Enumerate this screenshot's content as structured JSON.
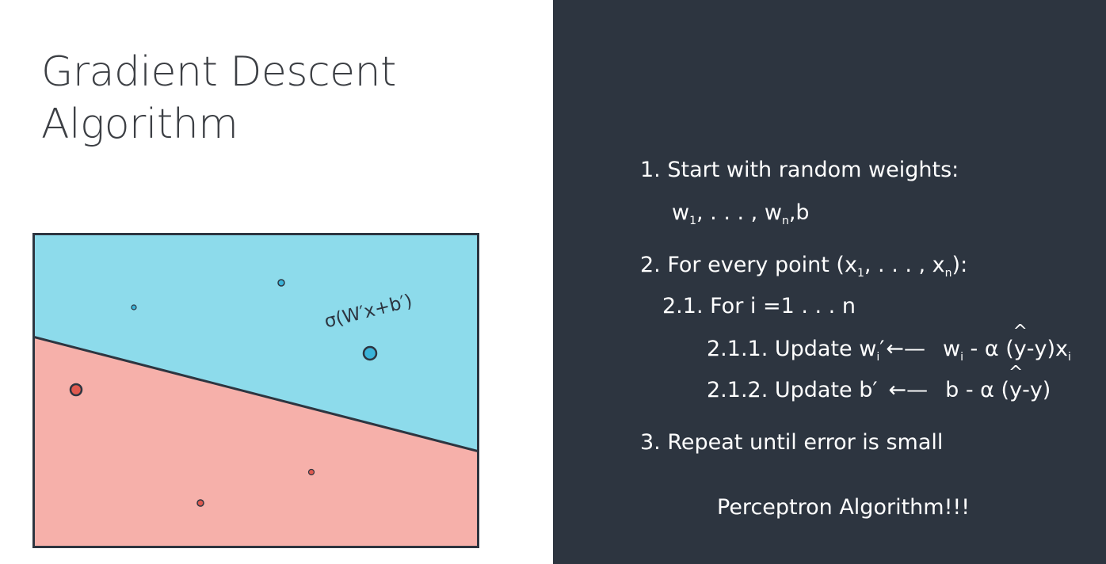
{
  "title": {
    "line1": "Gradient Descent",
    "line2": "Algorithm"
  },
  "diagram": {
    "formula": "σ(W′x+b′)",
    "colors": {
      "blue_region": "#8ddbeb",
      "red_region": "#f6b0aa",
      "border": "#2d3540",
      "blue_point": "#3ab4d9",
      "red_point": "#e05a4f"
    }
  },
  "steps": {
    "s1": "1. Start with random weights:",
    "s1b_w1": "w",
    "s1b_sub1": "1",
    "s1b_mid": ", . . . , w",
    "s1b_subn": "n",
    "s1b_end": ",b",
    "s2_pre": "2. For every point (x",
    "s2_sub1": "1",
    "s2_mid": ", . . . , x",
    "s2_subn": "n",
    "s2_end": "):",
    "s21": "2.1. For i =1 . . . n",
    "s211_pre": "2.1.1. Update w",
    "s211_sub": "i",
    "s211_prime": "′",
    "s211_arrow": "←—",
    "s211_rhs_w": "w",
    "s211_rhs_sub": "i",
    "s211_rhs_mid": " - α (",
    "s211_rhs_y": "y",
    "s211_rhs_after": "-y)x",
    "s211_rhs_subi": "i",
    "s212_pre": "2.1.2. Update b′",
    "s212_arrow": "←—",
    "s212_rhs_b": "b - α (",
    "s212_rhs_y": "y",
    "s212_rhs_after": "-y)",
    "s3": "3. Repeat until error is small"
  },
  "footer": "Perceptron Algorithm!!!"
}
